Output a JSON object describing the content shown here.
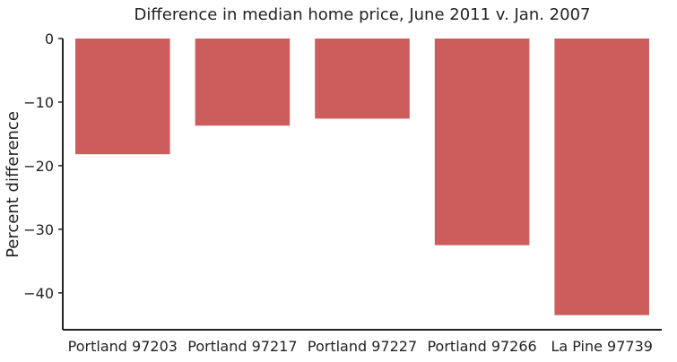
{
  "chart_data": {
    "type": "bar",
    "title": "Difference in median home price, June 2011 v. Jan. 2007",
    "xlabel": "",
    "ylabel": "Percent difference",
    "categories": [
      "Portland 97203",
      "Portland 97217",
      "Portland 97227",
      "Portland 97266",
      "La Pine 97739"
    ],
    "values": [
      -18.2,
      -13.7,
      -12.6,
      -32.5,
      -43.5
    ],
    "ylim": [
      -45.8,
      0
    ],
    "yticks": [
      0,
      -10,
      -20,
      -30,
      -40
    ],
    "ytick_labels": [
      "0",
      "−10",
      "−20",
      "−30",
      "−40"
    ],
    "grid": false,
    "bar_color": "#cd5c5c"
  }
}
